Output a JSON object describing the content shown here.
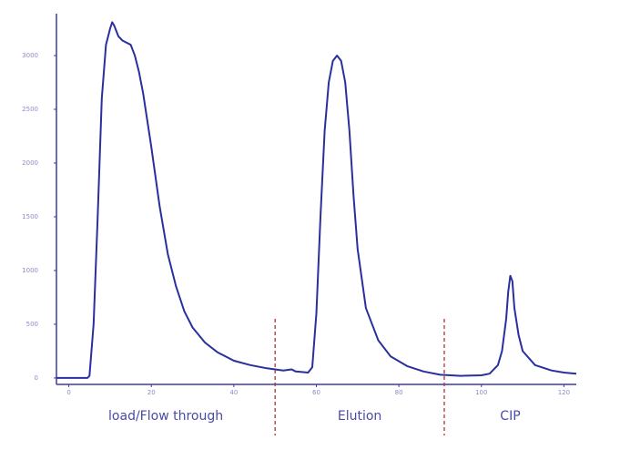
{
  "chart_data": {
    "type": "line",
    "x": [
      -3,
      4.5,
      5,
      6,
      7,
      8,
      9,
      10,
      10.5,
      11,
      12,
      13,
      15,
      16,
      17,
      18,
      19,
      20,
      22,
      24,
      26,
      28,
      30,
      33,
      36,
      40,
      44,
      48,
      52,
      54,
      55,
      58,
      59,
      60,
      61,
      62,
      63,
      64,
      65,
      66,
      67,
      68,
      69,
      70,
      72,
      75,
      78,
      82,
      86,
      90,
      95,
      100,
      102,
      104,
      105,
      106,
      106.5,
      107,
      107.5,
      108,
      109,
      110,
      113,
      117,
      120,
      123
    ],
    "values": [
      0,
      0,
      20,
      500,
      1500,
      2600,
      3100,
      3250,
      3310,
      3280,
      3180,
      3140,
      3100,
      3000,
      2850,
      2650,
      2400,
      2150,
      1600,
      1150,
      850,
      620,
      470,
      330,
      240,
      160,
      120,
      90,
      70,
      80,
      60,
      50,
      100,
      600,
      1500,
      2300,
      2750,
      2950,
      3000,
      2950,
      2750,
      2300,
      1700,
      1200,
      650,
      350,
      200,
      110,
      60,
      30,
      20,
      25,
      40,
      120,
      250,
      550,
      800,
      950,
      900,
      650,
      400,
      250,
      120,
      70,
      50,
      40
    ],
    "color": "#2a2f9e",
    "xlim": [
      -3,
      123
    ],
    "ylim": [
      -60,
      3390
    ],
    "xticks": [
      0,
      20,
      40,
      60,
      80,
      100,
      120
    ],
    "yticks": [
      0,
      500,
      1000,
      1500,
      2000,
      2500,
      3000
    ],
    "dividers": [
      50,
      91
    ],
    "divider_color": "#b0303a",
    "regions": [
      {
        "label": "load/Flow through"
      },
      {
        "label": "Elution"
      },
      {
        "label": "CIP"
      }
    ]
  }
}
